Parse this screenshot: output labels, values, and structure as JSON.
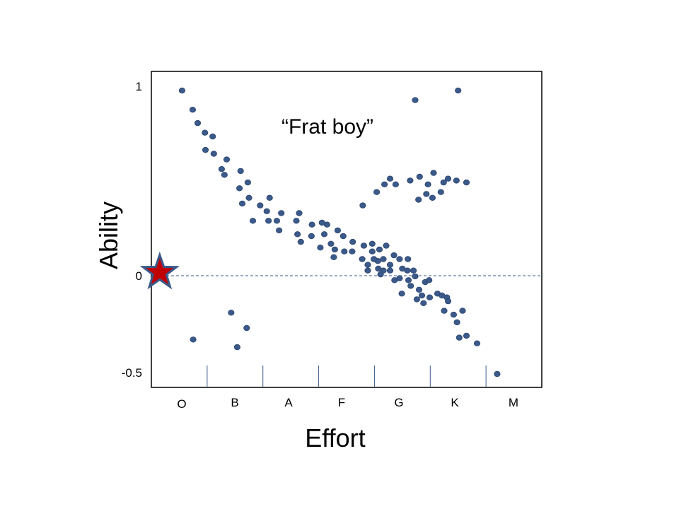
{
  "chart_data": {
    "type": "scatter",
    "title": "",
    "xlabel": "Effort",
    "ylabel": "Ability",
    "x_categories": [
      "O",
      "B",
      "A",
      "F",
      "G",
      "K",
      "M"
    ],
    "xlim": [
      0,
      7
    ],
    "ylim": [
      -0.6,
      1.05
    ],
    "yticks": [
      {
        "value": 1,
        "label": "1"
      },
      {
        "value": 0,
        "label": "0"
      },
      {
        "value": -0.5,
        "label": "-0.5"
      }
    ],
    "reference_line_y": 0,
    "grid": false,
    "legend": "none",
    "annotations": [
      {
        "text": "“Frat boy”",
        "x": 2.45,
        "y": 0.8
      }
    ],
    "highlight": {
      "shape": "star",
      "x": 0.15,
      "y": 0,
      "fill": "#c00000",
      "stroke": "#3b5a8a"
    },
    "series": [
      {
        "color": "#3b5a8a",
        "points": [
          [
            0.55,
            0.95
          ],
          [
            0.74,
            0.85
          ],
          [
            0.83,
            0.78
          ],
          [
            0.96,
            0.73
          ],
          [
            1.1,
            0.71
          ],
          [
            0.97,
            0.64
          ],
          [
            1.12,
            0.62
          ],
          [
            1.35,
            0.59
          ],
          [
            1.26,
            0.54
          ],
          [
            1.31,
            0.51
          ],
          [
            1.6,
            0.53
          ],
          [
            1.73,
            0.47
          ],
          [
            1.58,
            0.44
          ],
          [
            1.75,
            0.39
          ],
          [
            1.63,
            0.36
          ],
          [
            1.95,
            0.35
          ],
          [
            2.12,
            0.39
          ],
          [
            2.07,
            0.32
          ],
          [
            2.33,
            0.31
          ],
          [
            1.82,
            0.27
          ],
          [
            2.1,
            0.27
          ],
          [
            2.25,
            0.27
          ],
          [
            2.29,
            0.22
          ],
          [
            2.6,
            0.27
          ],
          [
            2.65,
            0.31
          ],
          [
            2.62,
            0.2
          ],
          [
            2.88,
            0.25
          ],
          [
            2.68,
            0.16
          ],
          [
            2.87,
            0.19
          ],
          [
            3.06,
            0.26
          ],
          [
            3.15,
            0.25
          ],
          [
            3.1,
            0.2
          ],
          [
            3.03,
            0.13
          ],
          [
            3.22,
            0.15
          ],
          [
            3.34,
            0.22
          ],
          [
            3.29,
            0.12
          ],
          [
            3.44,
            0.19
          ],
          [
            3.27,
            0.08
          ],
          [
            3.46,
            0.11
          ],
          [
            3.61,
            0.16
          ],
          [
            3.6,
            0.11
          ],
          [
            3.81,
            0.14
          ],
          [
            3.78,
            0.07
          ],
          [
            3.96,
            0.15
          ],
          [
            3.88,
            0.04
          ],
          [
            3.96,
            0.11
          ],
          [
            4.06,
            0.06
          ],
          [
            4.09,
            0.12
          ],
          [
            4.16,
            0.07
          ],
          [
            3.88,
            0.01
          ],
          [
            3.99,
            0.07
          ],
          [
            4.07,
            0.02
          ],
          [
            4.16,
            0.01
          ],
          [
            4.21,
            0.14
          ],
          [
            4.35,
            0.09
          ],
          [
            4.28,
            0.04
          ],
          [
            4.11,
            -0.01
          ],
          [
            4.28,
            0.01
          ],
          [
            4.45,
            0.07
          ],
          [
            4.5,
            0.02
          ],
          [
            4.6,
            0.07
          ],
          [
            4.36,
            -0.04
          ],
          [
            4.45,
            -0.03
          ],
          [
            4.61,
            -0.04
          ],
          [
            4.59,
            0.01
          ],
          [
            4.7,
            0.01
          ],
          [
            4.73,
            -0.02
          ],
          [
            4.49,
            -0.11
          ],
          [
            4.65,
            -0.07
          ],
          [
            4.8,
            -0.09
          ],
          [
            4.76,
            -0.14
          ],
          [
            4.85,
            -0.12
          ],
          [
            4.88,
            -0.16
          ],
          [
            4.99,
            -0.13
          ],
          [
            4.91,
            -0.05
          ],
          [
            4.98,
            -0.04
          ],
          [
            5.13,
            -0.11
          ],
          [
            5.3,
            -0.13
          ],
          [
            5.25,
            -0.2
          ],
          [
            5.21,
            -0.12
          ],
          [
            5.32,
            -0.15
          ],
          [
            5.42,
            -0.22
          ],
          [
            5.58,
            -0.2
          ],
          [
            5.48,
            -0.26
          ],
          [
            5.52,
            -0.34
          ],
          [
            5.65,
            -0.33
          ],
          [
            5.84,
            -0.37
          ],
          [
            6.2,
            -0.53
          ],
          [
            4.73,
            0.9
          ],
          [
            5.5,
            0.95
          ],
          [
            4.93,
            0.41
          ],
          [
            4.96,
            0.46
          ],
          [
            4.81,
            0.5
          ],
          [
            4.64,
            0.48
          ],
          [
            4.38,
            0.46
          ],
          [
            4.18,
            0.46
          ],
          [
            4.28,
            0.49
          ],
          [
            4.04,
            0.42
          ],
          [
            3.79,
            0.35
          ],
          [
            5.06,
            0.52
          ],
          [
            5.24,
            0.47
          ],
          [
            5.32,
            0.49
          ],
          [
            5.47,
            0.48
          ],
          [
            5.19,
            0.42
          ],
          [
            5.65,
            0.47
          ],
          [
            4.79,
            0.38
          ],
          [
            5.04,
            0.39
          ],
          [
            0.75,
            -0.35
          ],
          [
            1.43,
            -0.21
          ],
          [
            1.71,
            -0.29
          ],
          [
            1.54,
            -0.39
          ]
        ]
      }
    ]
  }
}
